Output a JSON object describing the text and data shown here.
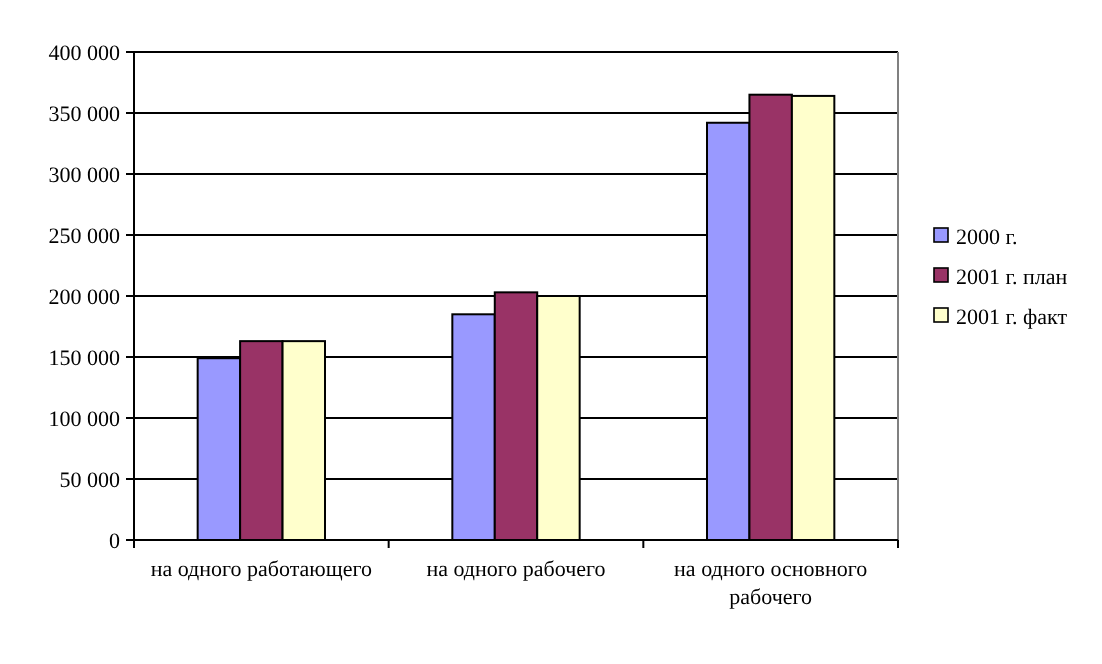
{
  "chart_data": {
    "type": "bar",
    "categories": [
      "на одного работающего",
      "на одного рабочего",
      "на одного основного рабочего"
    ],
    "series": [
      {
        "name": "2000 г.",
        "color": "#9999ff",
        "values": [
          149000,
          185000,
          342000
        ]
      },
      {
        "name": "2001 г. план",
        "color": "#993366",
        "values": [
          163000,
          203000,
          365000
        ]
      },
      {
        "name": "2001 г. факт",
        "color": "#ffffcc",
        "values": [
          163000,
          200000,
          364000
        ]
      }
    ],
    "ylim": [
      0,
      400000
    ],
    "yticks": [
      {
        "value": 0,
        "label": "0"
      },
      {
        "value": 50000,
        "label": "50 000"
      },
      {
        "value": 100000,
        "label": "100 000"
      },
      {
        "value": 150000,
        "label": "150 000"
      },
      {
        "value": 200000,
        "label": "200 000"
      },
      {
        "value": 250000,
        "label": "250 000"
      },
      {
        "value": 300000,
        "label": "300 000"
      },
      {
        "value": 350000,
        "label": "350 000"
      },
      {
        "value": 400000,
        "label": "400 000"
      }
    ],
    "grid": "y",
    "legend": "right"
  }
}
